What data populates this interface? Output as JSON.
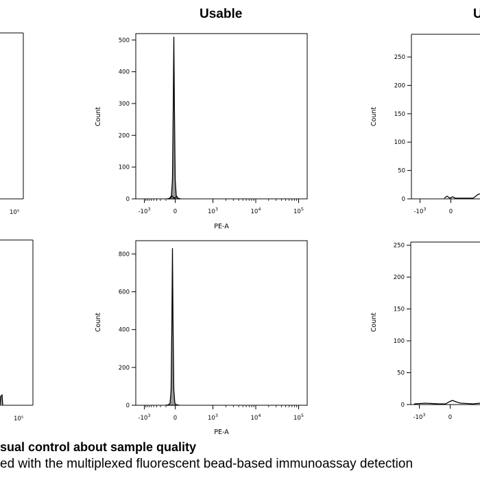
{
  "titles": {
    "usable": "Usable",
    "right": "U"
  },
  "caption": {
    "title": "sual control about sample quality",
    "text": "ed with the multiplexed fluorescent bead-based immunoassay detection"
  },
  "chart_data": [
    {
      "id": "top-left-partial",
      "type": "area",
      "x_ticks": [
        "10⁵"
      ],
      "y_ticks": [],
      "xlabel": "",
      "ylabel": "",
      "note": "partially visible panel, cropped at left edge"
    },
    {
      "id": "top-middle",
      "type": "area",
      "xlabel": "PE-A",
      "ylabel": "Count",
      "ylim": [
        0,
        520
      ],
      "y_ticks": [
        0,
        100,
        200,
        300,
        400,
        500
      ],
      "x_ticks": [
        "-10³",
        "0",
        "10³",
        "10⁴",
        "10⁵"
      ],
      "peak": {
        "x": "0",
        "y": 510
      },
      "x": [
        "-10³",
        "-400",
        "-150",
        "-60",
        "-20",
        "0",
        "20",
        "60",
        "150",
        "400",
        "10³"
      ],
      "values": [
        0,
        2,
        10,
        60,
        300,
        510,
        300,
        60,
        10,
        2,
        0
      ]
    },
    {
      "id": "top-right-partial",
      "type": "area",
      "xlabel": "",
      "ylabel": "Count",
      "ylim": [
        0,
        290
      ],
      "y_ticks": [
        0,
        50,
        100,
        150,
        200,
        250
      ],
      "x_ticks": [
        "-10³",
        "0"
      ],
      "values": [
        0,
        0,
        2,
        3,
        2,
        8
      ]
    },
    {
      "id": "bottom-left-partial",
      "type": "area",
      "x_ticks": [
        "10⁵"
      ],
      "y_ticks": [],
      "xlabel": "",
      "ylabel": ""
    },
    {
      "id": "bottom-middle",
      "type": "area",
      "xlabel": "PE-A",
      "ylabel": "Count",
      "ylim": [
        0,
        870
      ],
      "y_ticks": [
        0,
        200,
        400,
        600,
        800
      ],
      "x_ticks": [
        "-10³",
        "0",
        "10³",
        "10⁴",
        "10⁵"
      ],
      "peak": {
        "x": "0",
        "y": 830
      },
      "x": [
        "-10³",
        "-400",
        "-150",
        "-60",
        "-20",
        "0",
        "20",
        "60",
        "150",
        "400",
        "10³"
      ],
      "values": [
        0,
        2,
        10,
        80,
        450,
        830,
        450,
        80,
        10,
        2,
        0
      ]
    },
    {
      "id": "bottom-right-partial",
      "type": "area",
      "xlabel": "",
      "ylabel": "Count",
      "ylim": [
        0,
        255
      ],
      "y_ticks": [
        0,
        50,
        100,
        150,
        200,
        250
      ],
      "x_ticks": [
        "-10³",
        "0"
      ],
      "values": [
        0,
        1,
        4,
        8,
        5,
        2
      ]
    }
  ]
}
